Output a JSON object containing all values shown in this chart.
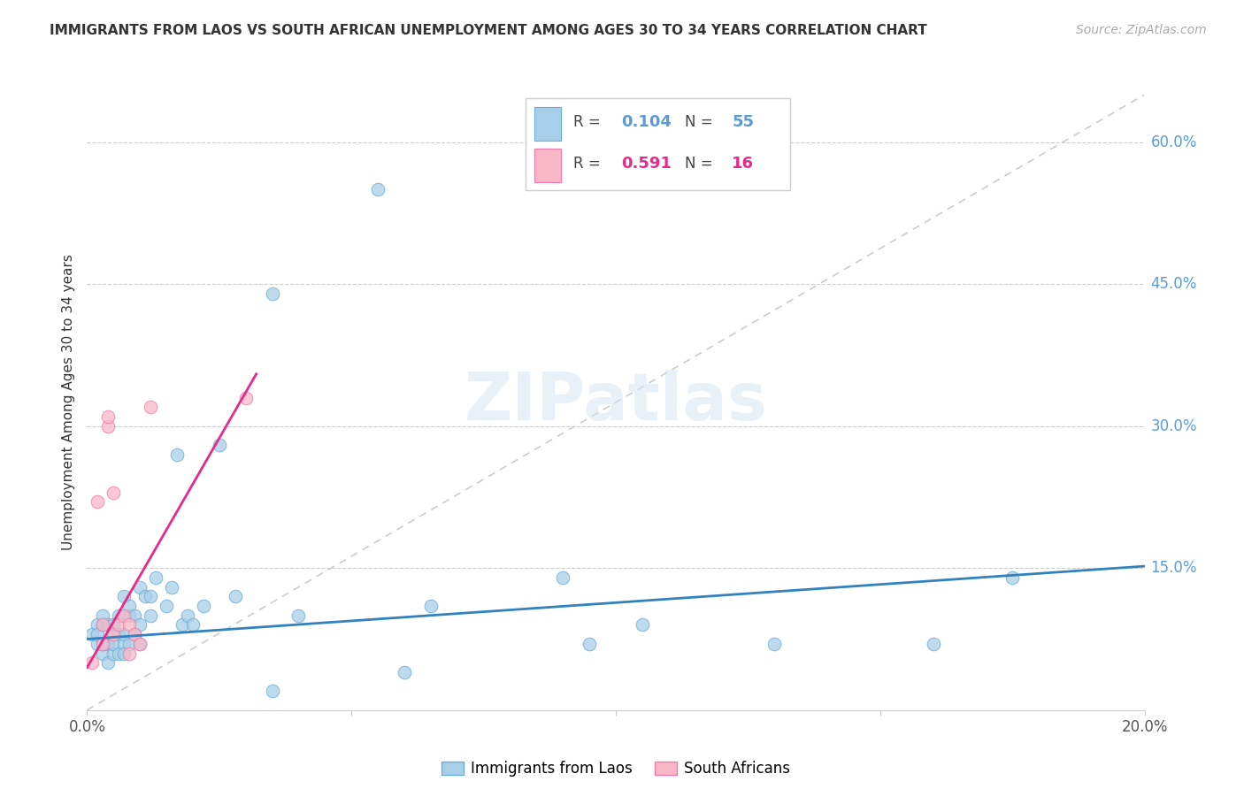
{
  "title": "IMMIGRANTS FROM LAOS VS SOUTH AFRICAN UNEMPLOYMENT AMONG AGES 30 TO 34 YEARS CORRELATION CHART",
  "source": "Source: ZipAtlas.com",
  "ylabel": "Unemployment Among Ages 30 to 34 years",
  "xlim": [
    0.0,
    0.2
  ],
  "ylim": [
    0.0,
    0.65
  ],
  "xticks": [
    0.0,
    0.05,
    0.1,
    0.15,
    0.2
  ],
  "xticklabels": [
    "0.0%",
    "",
    "",
    "",
    "20.0%"
  ],
  "yticks_right": [
    0.0,
    0.15,
    0.3,
    0.45,
    0.6
  ],
  "ytick_right_labels": [
    "",
    "15.0%",
    "30.0%",
    "45.0%",
    "60.0%"
  ],
  "blue_color": "#a8cfe8",
  "pink_color": "#f9b8c8",
  "blue_edge": "#6aaed6",
  "pink_edge": "#f47aab",
  "trend_blue": "#3182bd",
  "trend_pink": "#e7298a",
  "diag_color": "#cccccc",
  "legend_label_blue": "Immigrants from Laos",
  "legend_label_pink": "South Africans",
  "watermark": "ZIPatlas",
  "blue_x": [
    0.001,
    0.002,
    0.002,
    0.002,
    0.003,
    0.003,
    0.003,
    0.003,
    0.004,
    0.004,
    0.004,
    0.005,
    0.005,
    0.005,
    0.005,
    0.006,
    0.006,
    0.006,
    0.007,
    0.007,
    0.007,
    0.007,
    0.008,
    0.008,
    0.008,
    0.009,
    0.009,
    0.01,
    0.01,
    0.01,
    0.011,
    0.012,
    0.012,
    0.013,
    0.015,
    0.016,
    0.017,
    0.018,
    0.019,
    0.02,
    0.022,
    0.025,
    0.028,
    0.035,
    0.04,
    0.055,
    0.06,
    0.065,
    0.09,
    0.095,
    0.105,
    0.13,
    0.16,
    0.175,
    0.035
  ],
  "blue_y": [
    0.08,
    0.07,
    0.09,
    0.08,
    0.06,
    0.09,
    0.07,
    0.1,
    0.05,
    0.07,
    0.09,
    0.06,
    0.08,
    0.07,
    0.09,
    0.06,
    0.08,
    0.1,
    0.07,
    0.12,
    0.06,
    0.08,
    0.1,
    0.07,
    0.11,
    0.08,
    0.1,
    0.07,
    0.09,
    0.13,
    0.12,
    0.1,
    0.12,
    0.14,
    0.11,
    0.13,
    0.27,
    0.09,
    0.1,
    0.09,
    0.11,
    0.28,
    0.12,
    0.44,
    0.1,
    0.55,
    0.04,
    0.11,
    0.14,
    0.07,
    0.09,
    0.07,
    0.07,
    0.14,
    0.02
  ],
  "pink_x": [
    0.001,
    0.002,
    0.003,
    0.003,
    0.004,
    0.004,
    0.005,
    0.005,
    0.006,
    0.007,
    0.008,
    0.008,
    0.009,
    0.01,
    0.012,
    0.03
  ],
  "pink_y": [
    0.05,
    0.22,
    0.07,
    0.09,
    0.3,
    0.31,
    0.23,
    0.08,
    0.09,
    0.1,
    0.06,
    0.09,
    0.08,
    0.07,
    0.32,
    0.33
  ],
  "blue_trend_x": [
    0.0,
    0.2
  ],
  "blue_trend_y": [
    0.075,
    0.152
  ],
  "pink_trend_x": [
    0.0,
    0.032
  ],
  "pink_trend_y": [
    0.045,
    0.355
  ]
}
